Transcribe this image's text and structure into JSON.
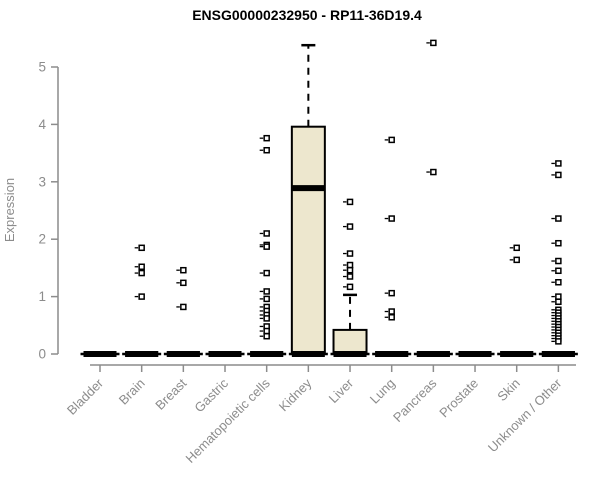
{
  "title": "ENSG00000232950 - RP11-36D19.4",
  "colors": {
    "background": "#FFFFFF",
    "box_fill": "#EDE7CE",
    "box_stroke": "#000000",
    "median": "#000000",
    "whisker": "#000000",
    "outlier_stroke": "#000000",
    "outlier_fill": "#FFFFFF",
    "axis": "#8C8C8C",
    "label_text": "#8C8C8C",
    "title_text": "#000000"
  },
  "chart_data": {
    "type": "boxplot",
    "title": "ENSG00000232950 - RP11-36D19.4",
    "xlabel": "",
    "ylabel": "Expression",
    "ylim": [
      0,
      5
    ],
    "yticks": [
      0,
      1,
      2,
      3,
      4,
      5
    ],
    "grid": false,
    "legend": false,
    "categories": [
      "Bladder",
      "Brain",
      "Breast",
      "Gastric",
      "Hematopoietic cells",
      "Kidney",
      "Liver",
      "Lung",
      "Pancreas",
      "Prostate",
      "Skin",
      "Unknown / Other"
    ],
    "boxes": [
      {
        "category": "Bladder",
        "whisker_low": 0,
        "q1": 0,
        "median": 0,
        "q3": 0,
        "whisker_high": 0,
        "outliers": []
      },
      {
        "category": "Brain",
        "whisker_low": 0,
        "q1": 0,
        "median": 0,
        "q3": 0,
        "whisker_high": 0,
        "outliers": [
          1.85,
          1.52,
          1.41,
          1.0
        ]
      },
      {
        "category": "Breast",
        "whisker_low": 0,
        "q1": 0,
        "median": 0,
        "q3": 0,
        "whisker_high": 0,
        "outliers": [
          1.46,
          1.24,
          0.82
        ]
      },
      {
        "category": "Gastric",
        "whisker_low": 0,
        "q1": 0,
        "median": 0,
        "q3": 0,
        "whisker_high": 0,
        "outliers": []
      },
      {
        "category": "Hematopoietic cells",
        "whisker_low": 0,
        "q1": 0,
        "median": 0,
        "q3": 0,
        "whisker_high": 0,
        "outliers": [
          3.76,
          3.55,
          2.1,
          1.9,
          1.87,
          1.41,
          1.09,
          0.96,
          0.82,
          0.75,
          0.68,
          0.62,
          0.48,
          0.4,
          0.31
        ]
      },
      {
        "category": "Kidney",
        "whisker_low": 0,
        "q1": 0,
        "median": 2.89,
        "q3": 3.96,
        "whisker_high": 5.38,
        "outliers": []
      },
      {
        "category": "Liver",
        "whisker_low": 0,
        "q1": 0,
        "median": 0,
        "q3": 0.42,
        "whisker_high": 1.03,
        "outliers": [
          2.65,
          2.22,
          1.75,
          1.55,
          1.46,
          1.35,
          1.17
        ]
      },
      {
        "category": "Lung",
        "whisker_low": 0,
        "q1": 0,
        "median": 0,
        "q3": 0,
        "whisker_high": 0,
        "outliers": [
          3.73,
          2.36,
          1.06,
          0.74,
          0.64
        ]
      },
      {
        "category": "Pancreas",
        "whisker_low": 0,
        "q1": 0,
        "median": 0,
        "q3": 0,
        "whisker_high": 0,
        "outliers": [
          5.42,
          3.17
        ]
      },
      {
        "category": "Prostate",
        "whisker_low": 0,
        "q1": 0,
        "median": 0,
        "q3": 0,
        "whisker_high": 0,
        "outliers": []
      },
      {
        "category": "Skin",
        "whisker_low": 0,
        "q1": 0,
        "median": 0,
        "q3": 0,
        "whisker_high": 0,
        "outliers": [
          1.85,
          1.64
        ]
      },
      {
        "category": "Unknown / Other",
        "whisker_low": 0,
        "q1": 0,
        "median": 0,
        "q3": 0,
        "whisker_high": 0,
        "outliers": [
          3.32,
          3.12,
          2.36,
          1.93,
          1.62,
          1.45,
          1.25,
          1.0,
          0.91,
          0.77,
          0.72,
          0.67,
          0.62,
          0.57,
          0.52,
          0.47,
          0.42,
          0.37,
          0.32,
          0.27,
          0.22
        ]
      }
    ]
  }
}
